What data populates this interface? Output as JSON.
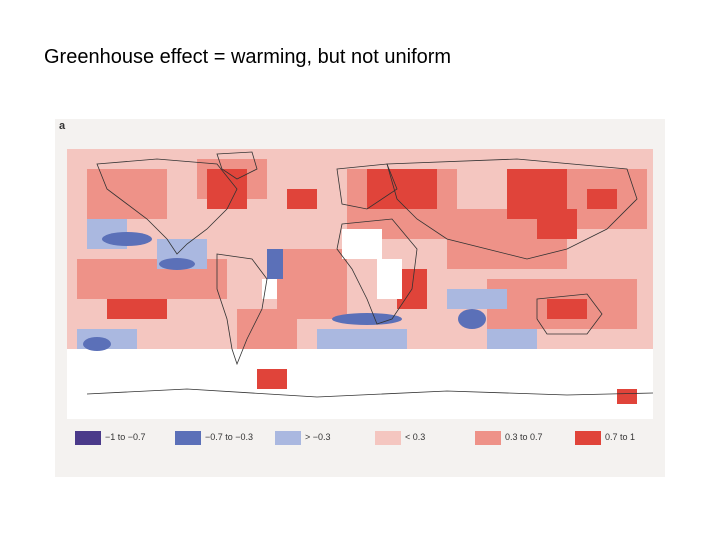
{
  "slide": {
    "title": "Greenhouse effect = warming, but not uniform"
  },
  "figure": {
    "panel_letter": "a",
    "colors": {
      "background": "#f4f2f0",
      "land_outline": "#333333",
      "nodata": "#ffffff"
    },
    "legend": [
      {
        "label": "−1 to −0.7",
        "color": "#4a3a8a"
      },
      {
        "label": "−0.7 to −0.3",
        "color": "#5b70b8"
      },
      {
        "label": "> −0.3",
        "color": "#aab8e0"
      },
      {
        "label": "< 0.3",
        "color": "#f4c6c0"
      },
      {
        "label": "0.3 to 0.7",
        "color": "#ee9288"
      },
      {
        "label": "0.7 to 1",
        "color": "#e0443a"
      }
    ]
  }
}
